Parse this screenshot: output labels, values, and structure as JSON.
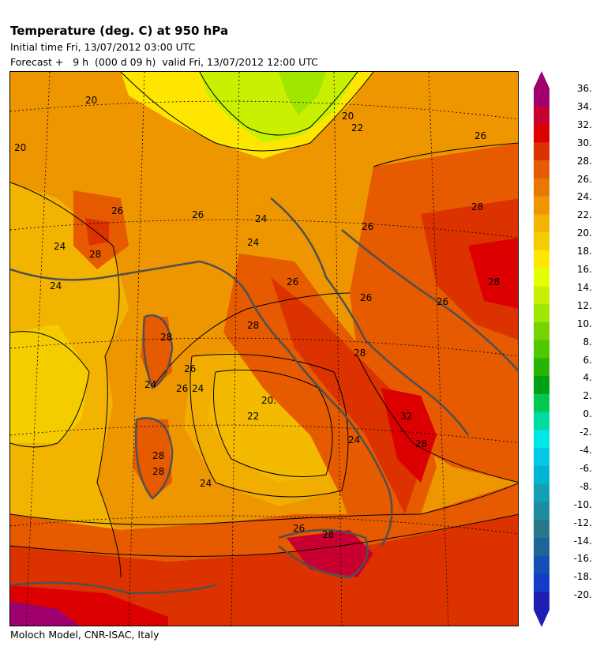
{
  "header": {
    "title": "Temperature (deg. C) at 950 hPa",
    "initial": "Initial time  Fri, 13/07/2012  03:00 UTC",
    "forecast": "Forecast +   9 h  (000 d 09 h)  valid Fri, 13/07/2012 12:00 UTC"
  },
  "footer": {
    "credit": "Moloch Model, CNR-ISAC, Italy"
  },
  "map": {
    "contour_labels": [
      "20",
      "20",
      "26",
      "24",
      "24",
      "28",
      "26",
      "24",
      "20.",
      "22",
      "24",
      "26",
      "24",
      "24",
      "26",
      "28",
      "26",
      "28",
      "26",
      "26",
      "28",
      "26",
      "32",
      "28",
      "28",
      "26",
      "28",
      "28",
      "24",
      "20",
      "22",
      "24",
      "26",
      "28",
      "28"
    ]
  },
  "colorbar": {
    "ticks": [
      "36.",
      "34.",
      "32.",
      "30.",
      "28.",
      "26.",
      "24.",
      "22.",
      "20.",
      "18.",
      "16.",
      "14.",
      "12.",
      "10.",
      "8.",
      "6.",
      "4.",
      "2.",
      "0.",
      "-2.",
      "-4.",
      "-6.",
      "-8.",
      "-10.",
      "-12.",
      "-14.",
      "-16.",
      "-18.",
      "-20."
    ],
    "colors": [
      "#a0006e",
      "#c80032",
      "#dc0000",
      "#dc3200",
      "#e65a00",
      "#e87800",
      "#ee9600",
      "#f2b400",
      "#f5cc00",
      "#ffe600",
      "#e6ff00",
      "#c8f000",
      "#a0e600",
      "#78d200",
      "#50c800",
      "#28b400",
      "#00a014",
      "#00c850",
      "#00dca0",
      "#00e6e6",
      "#00c8e6",
      "#00b4d2",
      "#14a0b4",
      "#1e8ca0",
      "#28788c",
      "#1e6496",
      "#1450b4",
      "#143cc8",
      "#1e1eb4"
    ]
  }
}
